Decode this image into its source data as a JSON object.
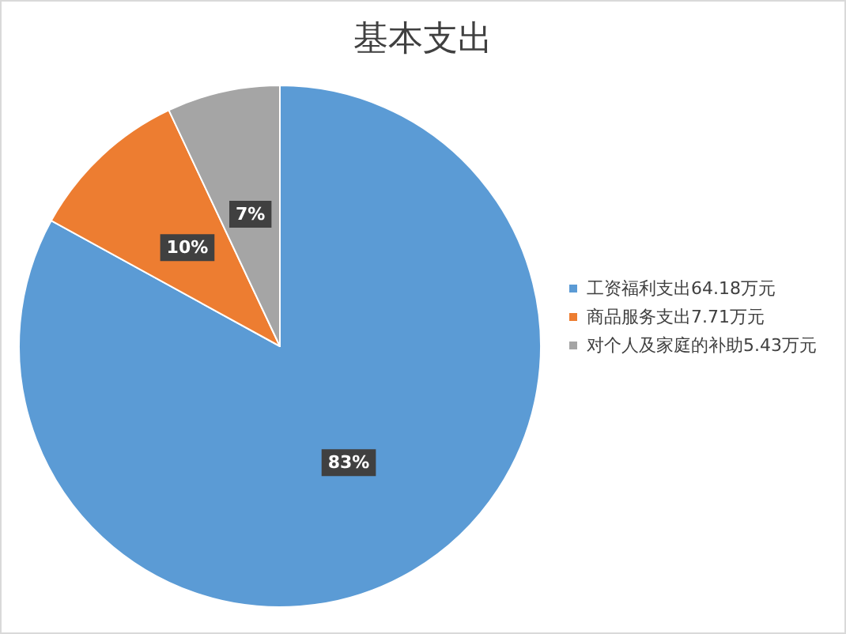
{
  "chart_data": {
    "type": "pie",
    "title": "基本支出",
    "categories": [
      "工资福利支出64.18万元",
      "商品服务支出7.71万元",
      "对个人及家庭的补助5.43万元"
    ],
    "values": [
      83,
      10,
      7
    ],
    "value_labels": [
      "83%",
      "10%",
      "7%"
    ],
    "colors": [
      "#5b9bd5",
      "#ed7d31",
      "#a5a5a5"
    ],
    "legend": "right"
  }
}
